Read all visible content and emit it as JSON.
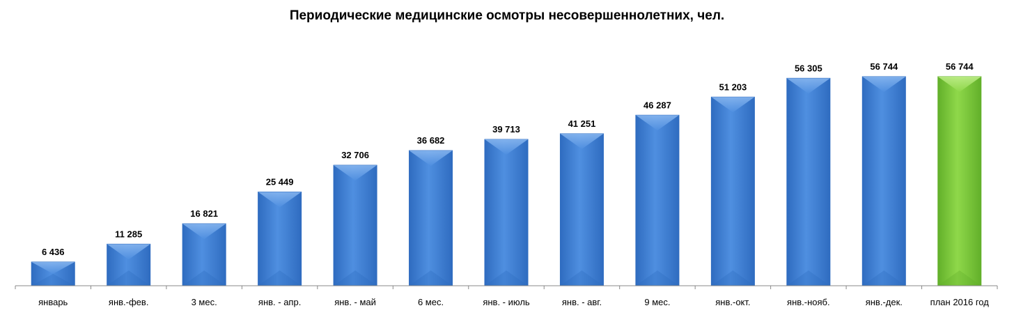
{
  "chart_data": {
    "type": "bar",
    "title": "Периодические медицинские осмотры несовершеннолетних, чел.",
    "xlabel": "",
    "ylabel": "",
    "ylim": [
      0,
      60000
    ],
    "grid": false,
    "legend": "none",
    "categories": [
      "январь",
      "янв.-фев.",
      "3 мес.",
      "янв. - апр.",
      "янв. - май",
      "6 мес.",
      "янв. - июль",
      "янв. - авг.",
      "9 мес.",
      "янв.-окт.",
      "янв.-нояб.",
      "янв.-дек.",
      "план 2016 год"
    ],
    "values": [
      6436,
      11285,
      16821,
      25449,
      32706,
      36682,
      39713,
      41251,
      46287,
      51203,
      56305,
      56744,
      56744
    ],
    "value_labels": [
      "6 436",
      "11 285",
      "16 821",
      "25 449",
      "32 706",
      "36 682",
      "39 713",
      "41 251",
      "46 287",
      "51 203",
      "56 305",
      "56 744",
      "56 744"
    ],
    "colors": {
      "bar": "#4f8fe0",
      "bar_dark": "#2f6cc0",
      "bar_light": "#8ab8f0",
      "plan": "#8fd84a",
      "plan_dark": "#62b02a",
      "plan_light": "#c2ef8e",
      "axis": "#888888"
    },
    "highlight_index": 12
  }
}
